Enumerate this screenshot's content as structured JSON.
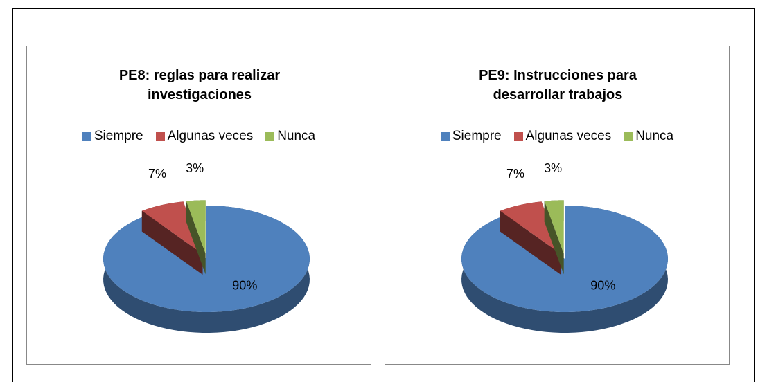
{
  "chart_data": [
    {
      "type": "pie",
      "title": "PE8:  reglas para realizar investigaciones",
      "categories": [
        "Siempre",
        "Algunas veces",
        "Nunca"
      ],
      "values": [
        90,
        7,
        3
      ],
      "value_labels": [
        "90%",
        "7%",
        "3%"
      ],
      "colors": [
        "#4f81bd",
        "#c0504d",
        "#9bbb59"
      ]
    },
    {
      "type": "pie",
      "title": "PE9:  Instrucciones para desarrollar trabajos",
      "categories": [
        "Siempre",
        "Algunas veces",
        "Nunca"
      ],
      "values": [
        90,
        7,
        3
      ],
      "value_labels": [
        "90%",
        "7%",
        "3%"
      ],
      "colors": [
        "#4f81bd",
        "#c0504d",
        "#9bbb59"
      ]
    }
  ]
}
